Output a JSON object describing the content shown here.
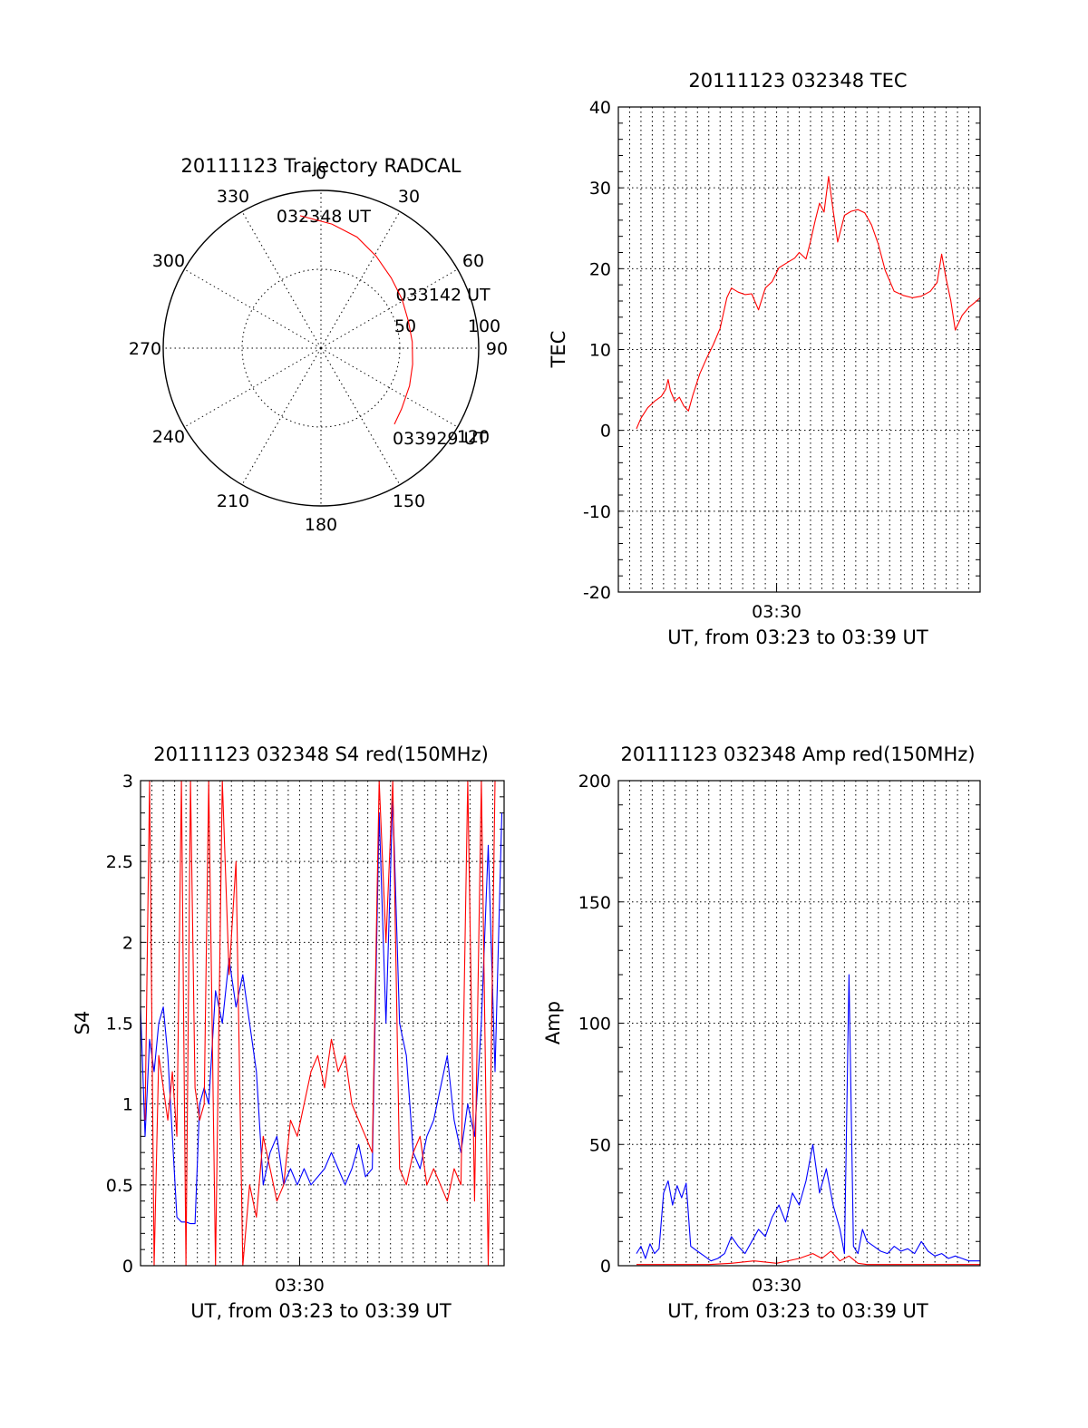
{
  "colors": {
    "red": "#ff0000",
    "blue": "#0000ff",
    "black": "#000000"
  },
  "chart_data": [
    {
      "id": "polar",
      "type": "scatter",
      "subtype": "polar-trajectory",
      "title": "20111123 Trajectory RADCAL",
      "azimuth_labels": [
        "0",
        "30",
        "60",
        "90",
        "120",
        "150",
        "180",
        "210",
        "240",
        "270",
        "300",
        "330"
      ],
      "radial_labels": [
        "50",
        "100"
      ],
      "radial_max": 100,
      "rings": [
        50,
        100
      ],
      "trajectory": [
        [
          -9,
          85
        ],
        [
          5,
          79
        ],
        [
          18,
          74
        ],
        [
          31,
          68
        ],
        [
          45,
          63
        ],
        [
          59,
          60
        ],
        [
          73,
          58
        ],
        [
          86,
          58
        ],
        [
          100,
          59
        ],
        [
          113,
          61
        ],
        [
          127,
          64
        ],
        [
          136,
          67
        ]
      ],
      "annotations": [
        {
          "text": "032348 UT",
          "az": -9,
          "r": 85
        },
        {
          "text": "033142 UT",
          "az": 73,
          "r": 58
        },
        {
          "text": "033929 UT",
          "az": 136,
          "r": 67
        }
      ],
      "series": [
        {
          "values": [],
          "color": "#ff0000"
        }
      ]
    },
    {
      "id": "tec",
      "type": "line",
      "title": "20111123 032348 TEC",
      "xlabel": "UT, from 03:23 to 03:39 UT",
      "ylabel": "TEC",
      "xlim": [
        23.0,
        39.0
      ],
      "xticks": [
        {
          "value": 30.0,
          "label": "03:30"
        }
      ],
      "ylim": [
        -20,
        40
      ],
      "yticks": [
        -20,
        -10,
        0,
        10,
        20,
        30,
        40
      ],
      "grid": true,
      "series": [
        {
          "color": "#ff0000",
          "x": [
            23.8,
            24.0,
            24.3,
            24.6,
            24.9,
            25.1,
            25.2,
            25.3,
            25.5,
            25.7,
            25.9,
            26.1,
            26.3,
            26.6,
            26.9,
            27.2,
            27.5,
            27.8,
            28.0,
            28.3,
            28.6,
            28.9,
            29.2,
            29.5,
            29.8,
            30.1,
            30.5,
            30.8,
            31.0,
            31.3,
            31.5,
            31.7,
            31.9,
            32.1,
            32.3,
            32.5,
            32.7,
            33.0,
            33.3,
            33.6,
            33.9,
            34.2,
            34.5,
            34.8,
            35.2,
            35.6,
            36.0,
            36.4,
            36.8,
            37.1,
            37.3,
            37.5,
            37.7,
            37.9,
            38.2,
            38.5,
            38.8,
            39.0
          ],
          "y": [
            0.2,
            1.5,
            2.8,
            3.6,
            4.2,
            5.1,
            6.3,
            4.9,
            3.6,
            4.1,
            3.0,
            2.4,
            4.4,
            7.0,
            8.9,
            10.6,
            12.6,
            16.4,
            17.6,
            17.1,
            16.8,
            16.9,
            14.9,
            17.6,
            18.4,
            20.1,
            20.8,
            21.3,
            22.0,
            21.2,
            23.4,
            25.9,
            28.1,
            27.0,
            31.4,
            27.2,
            23.3,
            26.6,
            27.1,
            27.3,
            26.9,
            25.4,
            23.0,
            19.8,
            17.2,
            16.7,
            16.4,
            16.6,
            17.2,
            18.3,
            21.8,
            18.7,
            16.1,
            12.4,
            14.2,
            15.2,
            15.9,
            16.4
          ]
        }
      ]
    },
    {
      "id": "s4",
      "type": "line",
      "title": "20111123 032348 S4 red(150MHz)",
      "xlabel": "UT, from 03:23 to 03:39 UT",
      "ylabel": "S4",
      "xlim": [
        23.0,
        39.0
      ],
      "xticks": [
        {
          "value": 30.0,
          "label": "03:30"
        }
      ],
      "ylim": [
        0,
        3
      ],
      "yticks": [
        "0",
        "0.5",
        "1",
        "1.5",
        "2",
        "2.5",
        "3"
      ],
      "grid": true,
      "series": [
        {
          "color": "#0000ff",
          "x": [
            23.0,
            23.2,
            23.4,
            23.6,
            23.8,
            24.0,
            24.2,
            24.4,
            24.6,
            24.8,
            25.0,
            25.2,
            25.4,
            25.6,
            25.8,
            26.0,
            26.3,
            26.6,
            26.9,
            27.2,
            27.5,
            27.8,
            28.1,
            28.4,
            28.7,
            29.0,
            29.3,
            29.6,
            29.9,
            30.2,
            30.5,
            30.8,
            31.1,
            31.4,
            31.7,
            32.0,
            32.3,
            32.6,
            32.9,
            33.2,
            33.5,
            33.8,
            34.1,
            34.4,
            34.7,
            35.0,
            35.3,
            35.6,
            35.9,
            36.2,
            36.5,
            36.8,
            37.1,
            37.4,
            37.7,
            38.0,
            38.3,
            38.6,
            38.9
          ],
          "y": [
            1.6,
            0.8,
            1.4,
            1.2,
            1.5,
            1.6,
            1.3,
            0.8,
            0.3,
            0.27,
            0.27,
            0.26,
            0.26,
            1.0,
            1.1,
            1.0,
            1.7,
            1.5,
            1.9,
            1.6,
            1.8,
            1.5,
            1.2,
            0.5,
            0.7,
            0.8,
            0.5,
            0.6,
            0.5,
            0.6,
            0.5,
            0.55,
            0.6,
            0.7,
            0.6,
            0.5,
            0.6,
            0.75,
            0.55,
            0.6,
            2.8,
            1.5,
            2.9,
            1.5,
            1.3,
            0.7,
            0.6,
            0.8,
            0.9,
            1.1,
            1.3,
            0.9,
            0.7,
            1.0,
            0.8,
            1.5,
            2.6,
            1.2,
            2.8
          ]
        },
        {
          "color": "#ff0000",
          "x": [
            23.2,
            23.4,
            23.6,
            23.8,
            24.0,
            24.2,
            24.4,
            24.6,
            24.8,
            25.0,
            25.2,
            25.4,
            25.6,
            25.8,
            26.0,
            26.3,
            26.6,
            26.9,
            27.2,
            27.5,
            27.8,
            28.1,
            28.4,
            28.7,
            29.0,
            29.3,
            29.6,
            29.9,
            30.2,
            30.5,
            30.8,
            31.1,
            31.4,
            31.7,
            32.0,
            32.3,
            32.6,
            32.9,
            33.2,
            33.5,
            33.8,
            34.1,
            34.4,
            34.7,
            35.0,
            35.3,
            35.6,
            35.9,
            36.2,
            36.5,
            36.8,
            37.1,
            37.4,
            37.7,
            38.0,
            38.3,
            38.6
          ],
          "y": [
            0.9,
            3.0,
            0.0,
            1.3,
            1.1,
            0.9,
            1.2,
            0.8,
            3.0,
            0.0,
            3.0,
            1.1,
            0.9,
            1.0,
            3.0,
            0.0,
            3.0,
            1.8,
            2.5,
            0.0,
            0.5,
            0.3,
            0.8,
            0.6,
            0.4,
            0.5,
            0.9,
            0.8,
            1.0,
            1.2,
            1.3,
            1.1,
            1.4,
            1.2,
            1.3,
            1.0,
            0.9,
            0.8,
            0.7,
            3.0,
            2.0,
            3.0,
            0.6,
            0.5,
            0.7,
            0.8,
            0.5,
            0.6,
            0.5,
            0.4,
            0.6,
            0.5,
            3.0,
            0.4,
            3.0,
            0.0,
            3.0
          ]
        }
      ]
    },
    {
      "id": "amp",
      "type": "line",
      "title": "20111123 032348 Amp red(150MHz)",
      "xlabel": "UT, from 03:23 to 03:39 UT",
      "ylabel": "Amp",
      "xlim": [
        23.0,
        39.0
      ],
      "xticks": [
        {
          "value": 30.0,
          "label": "03:30"
        }
      ],
      "ylim": [
        0,
        200
      ],
      "yticks": [
        0,
        50,
        100,
        150,
        200
      ],
      "grid": true,
      "series": [
        {
          "color": "#0000ff",
          "x": [
            23.8,
            24.0,
            24.2,
            24.4,
            24.6,
            24.8,
            25.0,
            25.2,
            25.4,
            25.6,
            25.8,
            26.0,
            26.2,
            26.5,
            26.8,
            27.1,
            27.4,
            27.7,
            28.0,
            28.3,
            28.6,
            28.9,
            29.2,
            29.5,
            29.8,
            30.1,
            30.4,
            30.7,
            31.0,
            31.3,
            31.6,
            31.9,
            32.2,
            32.5,
            32.8,
            33.0,
            33.2,
            33.4,
            33.6,
            33.8,
            34.0,
            34.3,
            34.6,
            34.9,
            35.2,
            35.5,
            35.8,
            36.1,
            36.4,
            36.7,
            37.0,
            37.3,
            37.6,
            37.9,
            38.2,
            38.5,
            38.8,
            39.0
          ],
          "y": [
            5,
            8,
            3,
            9,
            5,
            7,
            30,
            35,
            25,
            33,
            28,
            34,
            8,
            6,
            4,
            2,
            3,
            5,
            12,
            8,
            5,
            10,
            15,
            12,
            20,
            25,
            18,
            30,
            25,
            35,
            50,
            30,
            40,
            25,
            15,
            5,
            120,
            8,
            5,
            15,
            10,
            8,
            6,
            5,
            8,
            6,
            7,
            5,
            10,
            6,
            4,
            5,
            3,
            4,
            3,
            2,
            2,
            2
          ]
        },
        {
          "color": "#ff0000",
          "x": [
            23.8,
            25.0,
            26.0,
            27.0,
            28.0,
            29.0,
            30.0,
            31.0,
            31.6,
            32.0,
            32.4,
            32.8,
            33.2,
            33.6,
            34.0,
            35.0,
            36.0,
            37.0,
            38.0,
            39.0
          ],
          "y": [
            0.5,
            0.5,
            0.5,
            0.5,
            1,
            2,
            1,
            3,
            5,
            3,
            6,
            2,
            4,
            1,
            0.5,
            0.5,
            0.5,
            0.5,
            0.5,
            0.5
          ]
        }
      ]
    }
  ]
}
